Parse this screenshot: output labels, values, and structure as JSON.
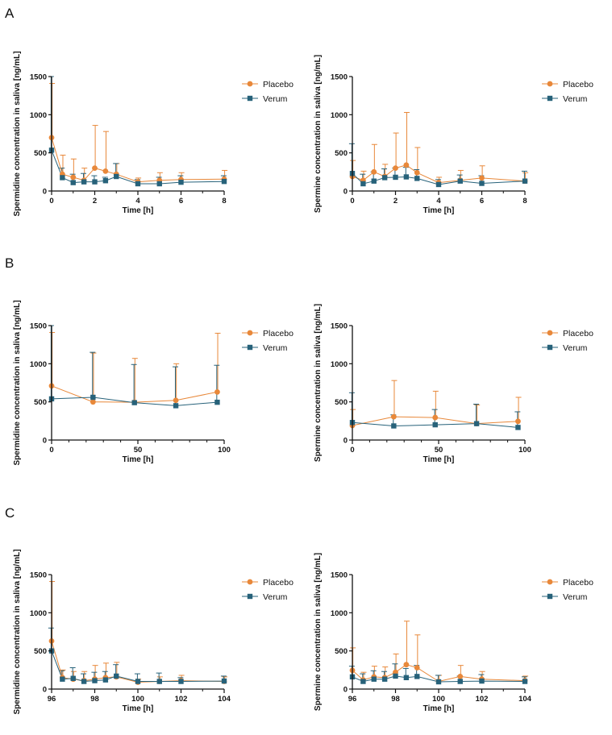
{
  "panel_labels": [
    "A",
    "B",
    "C"
  ],
  "colors": {
    "placebo": "#E8883A",
    "verum": "#27627A",
    "axis": "#111111"
  },
  "chart_data": [
    {
      "id": "A-left",
      "type": "line",
      "panel": "A",
      "position": "left",
      "xlabel": "Time [h]",
      "ylabel": "Spermidine concentration in saliva [ng/mL]",
      "xlim": [
        0,
        8
      ],
      "ylim": [
        0,
        1500
      ],
      "xticks": [
        0,
        2,
        4,
        6,
        8
      ],
      "xtick_labels": [
        "0",
        "2",
        "4",
        "6",
        "8"
      ],
      "xminor": [
        1,
        3,
        5,
        7
      ],
      "yticks": [
        0,
        500,
        1000,
        1500
      ],
      "ytick_labels": [
        "0",
        "500",
        "1000",
        "1500"
      ],
      "legend": [
        "Placebo",
        "Verum"
      ],
      "series": [
        {
          "name": "Placebo",
          "marker": "circle",
          "x": [
            0,
            0.5,
            1,
            1.5,
            2,
            2.5,
            3,
            4,
            5,
            6,
            8
          ],
          "values": [
            700,
            220,
            180,
            140,
            300,
            260,
            220,
            120,
            140,
            150,
            155
          ],
          "err_up": [
            1410,
            470,
            420,
            300,
            860,
            780,
            360,
            170,
            240,
            240,
            270
          ]
        },
        {
          "name": "Verum",
          "marker": "square",
          "x": [
            0,
            0.5,
            1,
            1.5,
            2,
            2.5,
            3,
            4,
            5,
            6,
            8
          ],
          "values": [
            535,
            175,
            110,
            120,
            120,
            135,
            190,
            95,
            95,
            115,
            125
          ],
          "err_up": [
            1500,
            300,
            220,
            230,
            200,
            180,
            360,
            150,
            180,
            200,
            200
          ]
        }
      ]
    },
    {
      "id": "A-right",
      "type": "line",
      "panel": "A",
      "position": "right",
      "xlabel": "Time [h]",
      "ylabel": "Spermine concentration in saliva [ng/mL]",
      "xlim": [
        0,
        8
      ],
      "ylim": [
        0,
        1500
      ],
      "xticks": [
        0,
        2,
        4,
        6,
        8
      ],
      "xtick_labels": [
        "0",
        "2",
        "4",
        "6",
        "8"
      ],
      "xminor": [
        1,
        3,
        5,
        7
      ],
      "yticks": [
        0,
        500,
        1000,
        1500
      ],
      "ytick_labels": [
        "0",
        "500",
        "1000",
        "1500"
      ],
      "legend": [
        "Placebo",
        "Verum"
      ],
      "series": [
        {
          "name": "Placebo",
          "marker": "circle",
          "x": [
            0,
            0.5,
            1,
            1.5,
            2,
            2.5,
            3,
            4,
            5,
            6,
            8
          ],
          "values": [
            190,
            140,
            250,
            190,
            300,
            340,
            240,
            110,
            140,
            170,
            130
          ],
          "err_up": [
            400,
            260,
            610,
            350,
            760,
            1030,
            570,
            180,
            270,
            330,
            240
          ]
        },
        {
          "name": "Verum",
          "marker": "square",
          "x": [
            0,
            0.5,
            1,
            1.5,
            2,
            2.5,
            3,
            4,
            5,
            6,
            8
          ],
          "values": [
            230,
            95,
            130,
            175,
            180,
            185,
            165,
            85,
            130,
            100,
            130
          ],
          "err_up": [
            620,
            220,
            250,
            290,
            300,
            310,
            280,
            150,
            210,
            200,
            260
          ]
        }
      ]
    },
    {
      "id": "B-left",
      "type": "line",
      "panel": "B",
      "position": "left",
      "xlabel": "Time [h]",
      "ylabel": "Spermidine concentration in saliva [ng/mL]",
      "xlim": [
        0,
        100
      ],
      "ylim": [
        0,
        1500
      ],
      "xticks": [
        0,
        50,
        100
      ],
      "xtick_labels": [
        "0",
        "50",
        "100"
      ],
      "xminor": [
        10,
        20,
        30,
        40,
        60,
        70,
        80,
        90
      ],
      "yticks": [
        0,
        500,
        1000,
        1500
      ],
      "ytick_labels": [
        "0",
        "500",
        "1000",
        "1500"
      ],
      "legend": [
        "Placebo",
        "Verum"
      ],
      "series": [
        {
          "name": "Placebo",
          "marker": "circle",
          "x": [
            0,
            24,
            48,
            72,
            96
          ],
          "values": [
            710,
            500,
            495,
            520,
            630
          ],
          "err_up": [
            1410,
            1140,
            1070,
            1000,
            1400
          ]
        },
        {
          "name": "Verum",
          "marker": "square",
          "x": [
            0,
            24,
            48,
            72,
            96
          ],
          "values": [
            540,
            560,
            490,
            450,
            495
          ],
          "err_up": [
            1500,
            1150,
            990,
            960,
            980
          ]
        }
      ]
    },
    {
      "id": "B-right",
      "type": "line",
      "panel": "B",
      "position": "right",
      "xlabel": "Time [h]",
      "ylabel": "Spermine concentration in saliva [ng/mL]",
      "xlim": [
        0,
        100
      ],
      "ylim": [
        0,
        1500
      ],
      "xticks": [
        0,
        50,
        100
      ],
      "xtick_labels": [
        "0",
        "50",
        "100"
      ],
      "xminor": [
        10,
        20,
        30,
        40,
        60,
        70,
        80,
        90
      ],
      "yticks": [
        0,
        500,
        1000,
        1500
      ],
      "ytick_labels": [
        "0",
        "500",
        "1000",
        "1500"
      ],
      "legend": [
        "Placebo",
        "Verum"
      ],
      "series": [
        {
          "name": "Placebo",
          "marker": "circle",
          "x": [
            0,
            24,
            48,
            72,
            96
          ],
          "values": [
            190,
            305,
            295,
            215,
            245
          ],
          "err_up": [
            400,
            780,
            640,
            460,
            560
          ]
        },
        {
          "name": "Verum",
          "marker": "square",
          "x": [
            0,
            24,
            48,
            72,
            96
          ],
          "values": [
            230,
            185,
            200,
            215,
            165
          ],
          "err_up": [
            620,
            330,
            400,
            470,
            370
          ]
        }
      ]
    },
    {
      "id": "C-left",
      "type": "line",
      "panel": "C",
      "position": "left",
      "xlabel": "Time [h]",
      "ylabel": "Spermidine concentration in saliva [ng/mL]",
      "xlim": [
        96,
        104
      ],
      "ylim": [
        0,
        1500
      ],
      "xticks": [
        96,
        98,
        100,
        102,
        104
      ],
      "xtick_labels": [
        "96",
        "98",
        "100",
        "102",
        "104"
      ],
      "xminor": [
        97,
        99,
        101,
        103
      ],
      "yticks": [
        0,
        500,
        1000,
        1500
      ],
      "ytick_labels": [
        "0",
        "500",
        "1000",
        "1500"
      ],
      "legend": [
        "Placebo",
        "Verum"
      ],
      "series": [
        {
          "name": "Placebo",
          "marker": "circle",
          "x": [
            96,
            96.5,
            97,
            97.5,
            98,
            98.5,
            99,
            100,
            101,
            102,
            104
          ],
          "values": [
            630,
            150,
            130,
            110,
            130,
            150,
            160,
            90,
            100,
            110,
            100
          ],
          "err_up": [
            1410,
            250,
            230,
            230,
            310,
            340,
            350,
            130,
            160,
            180,
            160
          ]
        },
        {
          "name": "Verum",
          "marker": "square",
          "x": [
            96,
            96.5,
            97,
            97.5,
            98,
            98.5,
            99,
            100,
            101,
            102,
            104
          ],
          "values": [
            500,
            130,
            140,
            100,
            110,
            120,
            170,
            100,
            100,
            100,
            105
          ],
          "err_up": [
            800,
            240,
            280,
            200,
            220,
            230,
            320,
            200,
            210,
            150,
            170
          ]
        }
      ]
    },
    {
      "id": "C-right",
      "type": "line",
      "panel": "C",
      "position": "right",
      "xlabel": "Time [h]",
      "ylabel": "Spermine concentration in saliva [ng/mL]",
      "xlim": [
        96,
        104
      ],
      "ylim": [
        0,
        1500
      ],
      "xticks": [
        96,
        98,
        100,
        102,
        104
      ],
      "xtick_labels": [
        "96",
        "98",
        "100",
        "102",
        "104"
      ],
      "xminor": [
        97,
        99,
        101,
        103
      ],
      "yticks": [
        0,
        500,
        1000,
        1500
      ],
      "ytick_labels": [
        "0",
        "500",
        "1000",
        "1500"
      ],
      "legend": [
        "Placebo",
        "Verum"
      ],
      "series": [
        {
          "name": "Placebo",
          "marker": "circle",
          "x": [
            96,
            96.5,
            97,
            97.5,
            98,
            98.5,
            99,
            100,
            101,
            102,
            104
          ],
          "values": [
            245,
            120,
            160,
            150,
            220,
            320,
            280,
            100,
            165,
            130,
            110
          ],
          "err_up": [
            540,
            220,
            300,
            290,
            460,
            890,
            710,
            180,
            310,
            230,
            170
          ]
        },
        {
          "name": "Verum",
          "marker": "square",
          "x": [
            96,
            96.5,
            97,
            97.5,
            98,
            98.5,
            99,
            100,
            101,
            102,
            104
          ],
          "values": [
            160,
            100,
            130,
            130,
            170,
            150,
            165,
            95,
            100,
            105,
            100
          ],
          "err_up": [
            300,
            200,
            240,
            230,
            330,
            270,
            310,
            180,
            170,
            190,
            160
          ]
        }
      ]
    }
  ]
}
